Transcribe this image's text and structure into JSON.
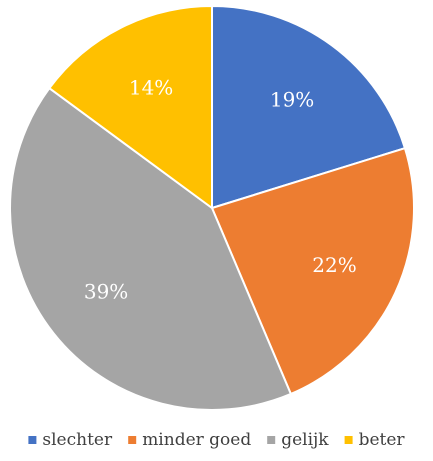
{
  "chart_data": {
    "type": "pie",
    "slices": [
      {
        "label": "slechter",
        "value": 19,
        "display": "19%",
        "color": "#4472C4"
      },
      {
        "label": "minder goed",
        "value": 22,
        "display": "22%",
        "color": "#ED7D31"
      },
      {
        "label": "gelijk",
        "value": 39,
        "display": "39%",
        "color": "#A5A5A5"
      },
      {
        "label": "beter",
        "value": 14,
        "display": "14%",
        "color": "#FFC000"
      }
    ],
    "title": "",
    "legend_position": "bottom",
    "start_angle": "12 o'clock",
    "direction": "clockwise"
  }
}
